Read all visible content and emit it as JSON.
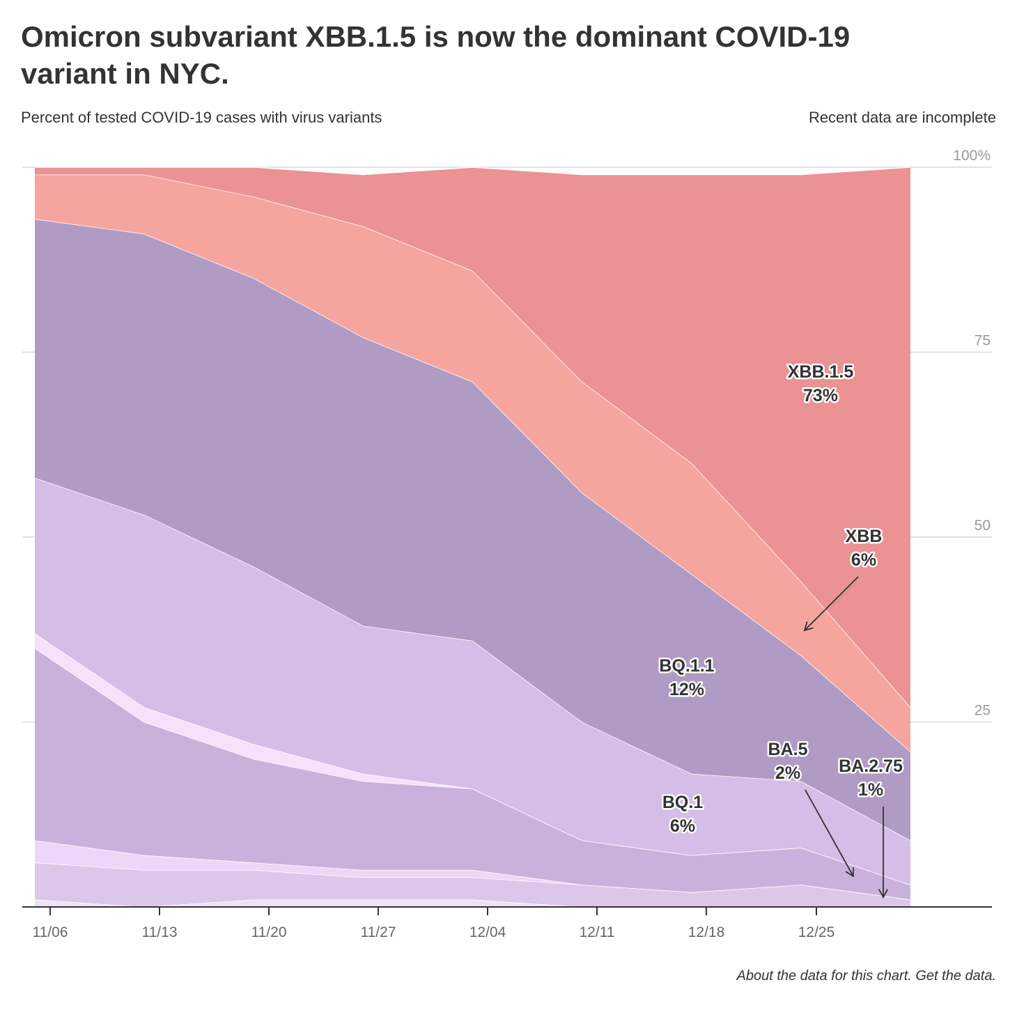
{
  "title": "Omicron subvariant XBB.1.5 is now the dominant COVID-19 variant in NYC.",
  "subtitle": "Percent of tested COVID-19 cases with virus variants",
  "note": "Recent data are incomplete",
  "footer": "About the data for this chart. Get the data.",
  "chart_data": {
    "type": "area",
    "stacked": true,
    "x": [
      "11/05",
      "11/12",
      "11/19",
      "11/26",
      "12/03",
      "12/10",
      "12/17",
      "12/24",
      "12/31"
    ],
    "xticks": [
      "11/06",
      "11/13",
      "11/20",
      "11/27",
      "12/04",
      "12/11",
      "12/18",
      "12/25"
    ],
    "yticks": [
      "100%",
      "75",
      "50",
      "25"
    ],
    "ytick_values": [
      100,
      75,
      50,
      25
    ],
    "ylim": [
      0,
      100
    ],
    "grid": true,
    "colors": [
      "#f1e1f6",
      "#dcc6e9",
      "#eed6f8",
      "#c9b1dc",
      "#f6e0fa",
      "#d4bde6",
      "#b09bc4",
      "#f6a49e",
      "#ea9294"
    ],
    "series": [
      {
        "name": "",
        "values": [
          1,
          0,
          1,
          1,
          1,
          0,
          0,
          0,
          0
        ]
      },
      {
        "name": "BA.2.75",
        "values": [
          5,
          5,
          4,
          3,
          3,
          3,
          2,
          3,
          1
        ]
      },
      {
        "name": "",
        "values": [
          3,
          2,
          1,
          1,
          1,
          0,
          0,
          0,
          0
        ]
      },
      {
        "name": "BA.5",
        "values": [
          26,
          18,
          14,
          12,
          11,
          6,
          5,
          5,
          2
        ]
      },
      {
        "name": "",
        "values": [
          2,
          2,
          2,
          1,
          0,
          0,
          0,
          0,
          0
        ]
      },
      {
        "name": "BQ.1",
        "values": [
          21,
          26,
          24,
          20,
          20,
          16,
          11,
          9,
          6
        ]
      },
      {
        "name": "BQ.1.1",
        "values": [
          35,
          38,
          39,
          39,
          35,
          31,
          27,
          17,
          12
        ]
      },
      {
        "name": "XBB",
        "values": [
          6,
          8,
          11,
          15,
          15,
          15,
          15,
          10,
          6
        ]
      },
      {
        "name": "XBB.1.5",
        "values": [
          1,
          1,
          4,
          7,
          14,
          28,
          39,
          55,
          73
        ]
      }
    ],
    "annotations": [
      {
        "label": "XBB.1.5",
        "value": "73%"
      },
      {
        "label": "XBB",
        "value": "6%"
      },
      {
        "label": "BQ.1.1",
        "value": "12%"
      },
      {
        "label": "BQ.1",
        "value": "6%"
      },
      {
        "label": "BA.5",
        "value": "2%"
      },
      {
        "label": "BA.2.75",
        "value": "1%"
      }
    ]
  }
}
